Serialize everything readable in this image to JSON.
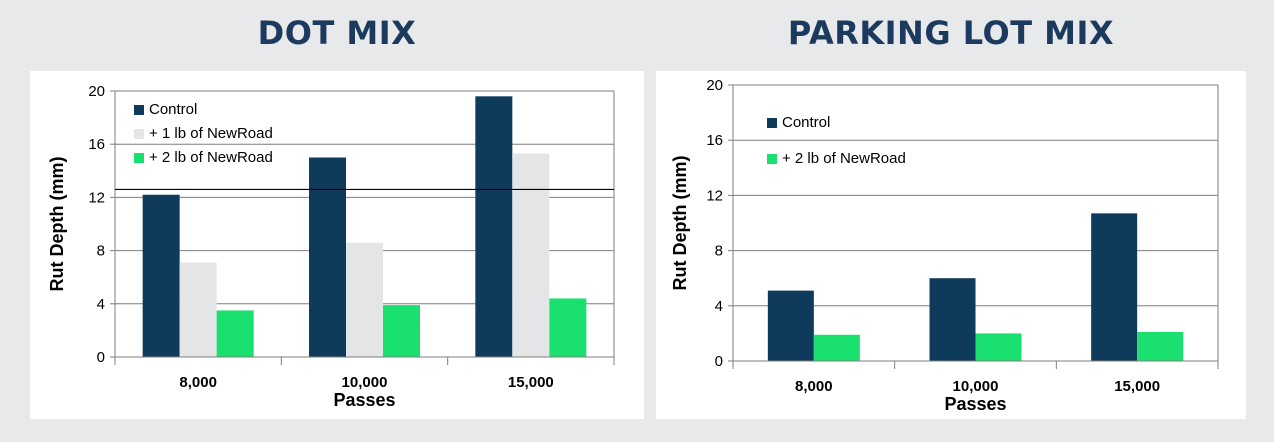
{
  "headings": [
    "DOT MIX",
    "PARKING LOT MIX"
  ],
  "colors": {
    "control": "#0e3b5c",
    "one_lb": "#e4e5e7",
    "two_lb": "#19e06e",
    "heading": "#1b3a5e",
    "grid": "#7f7f7f"
  },
  "chart_data": [
    {
      "type": "bar",
      "title": "DOT MIX",
      "xlabel": "Passes",
      "ylabel": "Rut Depth (mm)",
      "categories": [
        "8,000",
        "10,000",
        "15,000"
      ],
      "yticks": [
        "0",
        "4",
        "8",
        "12",
        "16",
        "20"
      ],
      "ylim": [
        0,
        20
      ],
      "grid": true,
      "legend": "top-left",
      "series": [
        {
          "name": "Control",
          "values": [
            12.2,
            15.0,
            19.6
          ]
        },
        {
          "name": "+ 1 lb of NewRoad",
          "values": [
            7.1,
            8.6,
            15.3
          ]
        },
        {
          "name": "+ 2 lb of NewRoad",
          "values": [
            3.5,
            3.9,
            4.4
          ]
        }
      ],
      "reference_line": 12.6
    },
    {
      "type": "bar",
      "title": "PARKING LOT MIX",
      "xlabel": "Passes",
      "ylabel": "Rut Depth (mm)",
      "categories": [
        "8,000",
        "10,000",
        "15,000"
      ],
      "yticks": [
        "0",
        "4",
        "8",
        "12",
        "16",
        "20"
      ],
      "ylim": [
        0,
        20
      ],
      "grid": true,
      "legend": "top-left",
      "series": [
        {
          "name": "Control",
          "values": [
            5.1,
            6.0,
            10.7
          ]
        },
        {
          "name": "+ 2 lb of NewRoad",
          "values": [
            1.9,
            2.0,
            2.1
          ]
        }
      ]
    }
  ]
}
